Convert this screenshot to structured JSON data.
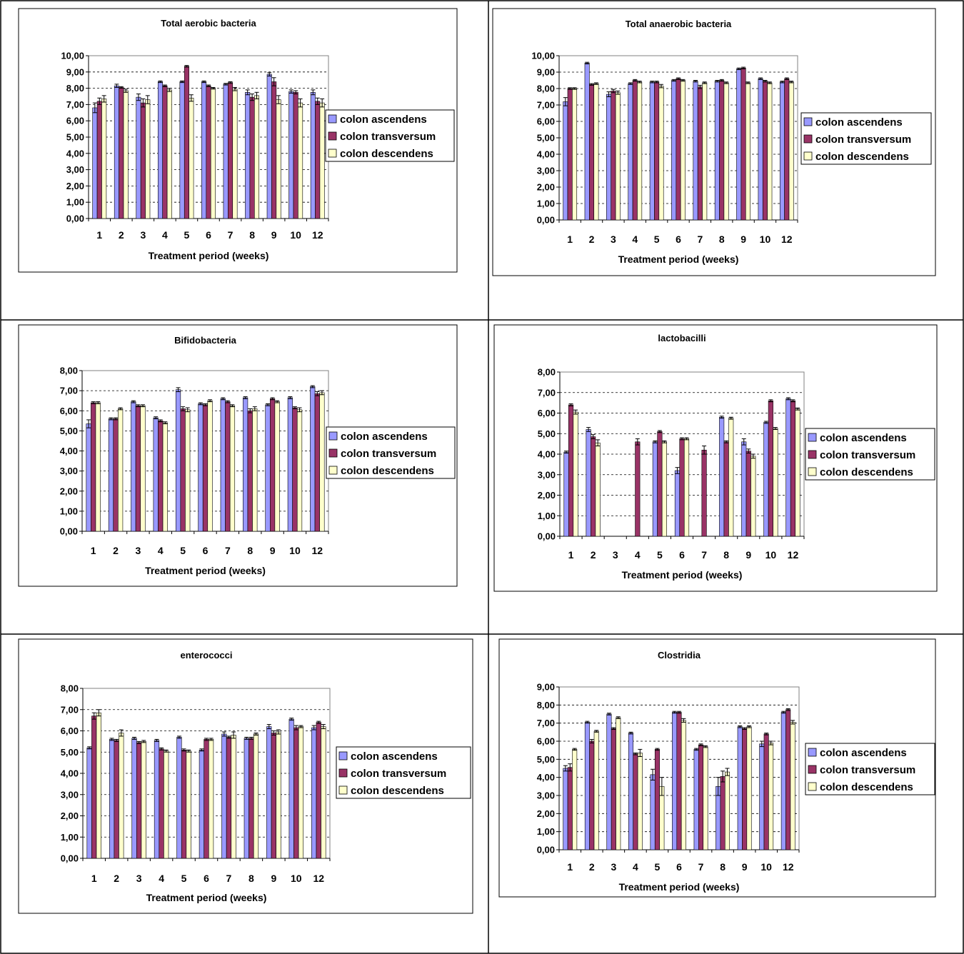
{
  "series_colors": [
    "#9999ff",
    "#993366",
    "#ffffcc"
  ],
  "series_names": [
    "colon ascendens",
    "colon transversum",
    "colon descendens"
  ],
  "chart_data": [
    {
      "type": "bar",
      "title": "Total aerobic bacteria",
      "xlabel": "Treatment period (weeks)",
      "ylabel": "",
      "categories": [
        "1",
        "2",
        "3",
        "4",
        "5",
        "6",
        "7",
        "8",
        "9",
        "10",
        "12"
      ],
      "ylim": [
        0,
        10
      ],
      "yticks": [
        "0,00",
        "1,00",
        "2,00",
        "3,00",
        "4,00",
        "5,00",
        "6,00",
        "7,00",
        "8,00",
        "9,00",
        "10,00"
      ],
      "grid": true,
      "legend": "right",
      "series": [
        {
          "name": "colon ascendens",
          "values": [
            6.8,
            8.15,
            7.45,
            8.4,
            8.4,
            8.4,
            8.25,
            7.75,
            8.85,
            7.8,
            7.75
          ],
          "errors": [
            0.3,
            0.1,
            0.2,
            0.05,
            0.05,
            0.05,
            0.05,
            0.15,
            0.1,
            0.1,
            0.15
          ]
        },
        {
          "name": "colon transversum",
          "values": [
            7.2,
            8.05,
            7.1,
            8.15,
            9.35,
            8.15,
            8.35,
            7.45,
            8.4,
            7.75,
            7.2
          ],
          "errors": [
            0.2,
            0.05,
            0.25,
            0.05,
            0.05,
            0.05,
            0.05,
            0.2,
            0.25,
            0.1,
            0.2
          ]
        },
        {
          "name": "colon descendens",
          "values": [
            7.35,
            7.85,
            7.3,
            7.9,
            7.4,
            8.0,
            7.95,
            7.55,
            7.3,
            7.1,
            7.1
          ],
          "errors": [
            0.2,
            0.1,
            0.25,
            0.1,
            0.2,
            0.05,
            0.1,
            0.2,
            0.25,
            0.25,
            0.25
          ]
        }
      ]
    },
    {
      "type": "bar",
      "title": "Total anaerobic bacteria",
      "xlabel": "Treatment period (weeks)",
      "ylabel": "",
      "categories": [
        "1",
        "2",
        "3",
        "4",
        "5",
        "6",
        "7",
        "8",
        "9",
        "10",
        "12"
      ],
      "ylim": [
        0,
        10
      ],
      "yticks": [
        "0,00",
        "1,00",
        "2,00",
        "3,00",
        "4,00",
        "5,00",
        "6,00",
        "7,00",
        "8,00",
        "9,00",
        "10,00"
      ],
      "grid": true,
      "legend": "right",
      "series": [
        {
          "name": "colon ascendens",
          "values": [
            7.2,
            9.55,
            7.65,
            8.3,
            8.4,
            8.5,
            8.45,
            8.45,
            9.2,
            8.6,
            8.4
          ],
          "errors": [
            0.25,
            0.05,
            0.15,
            0.05,
            0.05,
            0.05,
            0.05,
            0.05,
            0.05,
            0.05,
            0.05
          ]
        },
        {
          "name": "colon transversum",
          "values": [
            8.0,
            8.25,
            7.85,
            8.5,
            8.4,
            8.6,
            8.1,
            8.5,
            9.25,
            8.45,
            8.6
          ],
          "errors": [
            0.05,
            0.05,
            0.1,
            0.05,
            0.05,
            0.05,
            0.1,
            0.05,
            0.05,
            0.05,
            0.05
          ]
        },
        {
          "name": "colon descendens",
          "values": [
            8.0,
            8.3,
            7.75,
            8.4,
            8.15,
            8.5,
            8.35,
            8.35,
            8.35,
            8.35,
            8.4
          ],
          "errors": [
            0.05,
            0.05,
            0.1,
            0.05,
            0.1,
            0.05,
            0.05,
            0.05,
            0.05,
            0.05,
            0.05
          ]
        }
      ]
    },
    {
      "type": "bar",
      "title": "Bifidobacteria",
      "xlabel": "Treatment period (weeks)",
      "ylabel": "",
      "categories": [
        "1",
        "2",
        "3",
        "4",
        "5",
        "6",
        "7",
        "8",
        "9",
        "10",
        "12"
      ],
      "ylim": [
        0,
        8
      ],
      "yticks": [
        "0,00",
        "1,00",
        "2,00",
        "3,00",
        "4,00",
        "5,00",
        "6,00",
        "7,00",
        "8,00"
      ],
      "grid": true,
      "legend": "right",
      "series": [
        {
          "name": "colon ascendens",
          "values": [
            5.35,
            5.6,
            6.45,
            5.65,
            7.05,
            6.35,
            6.6,
            6.65,
            6.3,
            6.65,
            7.2
          ],
          "errors": [
            0.2,
            0.05,
            0.05,
            0.05,
            0.1,
            0.05,
            0.05,
            0.05,
            0.05,
            0.05,
            0.05
          ]
        },
        {
          "name": "colon transversum",
          "values": [
            6.4,
            5.6,
            6.25,
            5.5,
            6.1,
            6.3,
            6.45,
            6.0,
            6.6,
            6.15,
            6.85
          ],
          "errors": [
            0.05,
            0.05,
            0.05,
            0.05,
            0.1,
            0.05,
            0.05,
            0.1,
            0.05,
            0.05,
            0.1
          ]
        },
        {
          "name": "colon descendens",
          "values": [
            6.4,
            6.1,
            6.25,
            5.4,
            6.05,
            6.5,
            6.25,
            6.1,
            6.45,
            6.05,
            6.9
          ],
          "errors": [
            0.05,
            0.05,
            0.05,
            0.05,
            0.1,
            0.05,
            0.05,
            0.1,
            0.05,
            0.1,
            0.1
          ]
        }
      ]
    },
    {
      "type": "bar",
      "title": "lactobacilli",
      "xlabel": "Treatment period (weeks)",
      "ylabel": "",
      "categories": [
        "1",
        "2",
        "3",
        "4",
        "5",
        "6",
        "7",
        "8",
        "9",
        "10",
        "12"
      ],
      "ylim": [
        0,
        8
      ],
      "yticks": [
        "0,00",
        "1,00",
        "2,00",
        "3,00",
        "4,00",
        "5,00",
        "6,00",
        "7,00",
        "8,00"
      ],
      "grid": true,
      "legend": "right",
      "series": [
        {
          "name": "colon ascendens",
          "values": [
            4.1,
            5.2,
            0,
            0,
            4.6,
            3.2,
            0,
            5.8,
            4.6,
            5.55,
            6.7
          ],
          "errors": [
            0.05,
            0.1,
            0,
            0,
            0.05,
            0.15,
            0,
            0.05,
            0.15,
            0.05,
            0.05
          ]
        },
        {
          "name": "colon transversum",
          "values": [
            6.4,
            4.85,
            0,
            4.6,
            5.1,
            4.75,
            4.2,
            4.6,
            4.15,
            6.6,
            6.6
          ],
          "errors": [
            0.05,
            0.1,
            0,
            0.15,
            0.05,
            0.05,
            0.2,
            0.05,
            0.1,
            0.05,
            0.05
          ]
        },
        {
          "name": "colon descendens",
          "values": [
            6.05,
            4.55,
            0,
            0,
            4.6,
            4.75,
            0,
            5.75,
            3.9,
            5.25,
            6.2
          ],
          "errors": [
            0.1,
            0.15,
            0,
            0,
            0.05,
            0.05,
            0,
            0.05,
            0.1,
            0.05,
            0.05
          ]
        }
      ]
    },
    {
      "type": "bar",
      "title": "enterococci",
      "xlabel": "Treatment period (weeks)",
      "ylabel": "",
      "categories": [
        "1",
        "2",
        "3",
        "4",
        "5",
        "6",
        "7",
        "8",
        "9",
        "10",
        "12"
      ],
      "ylim": [
        0,
        8
      ],
      "yticks": [
        "0,00",
        "1,00",
        "2,00",
        "3,00",
        "4,00",
        "5,00",
        "6,00",
        "7,00",
        "8,00"
      ],
      "grid": true,
      "legend": "right",
      "series": [
        {
          "name": "colon ascendens",
          "values": [
            5.2,
            5.6,
            5.65,
            5.55,
            5.7,
            5.1,
            5.85,
            5.65,
            6.2,
            6.55,
            6.15
          ],
          "errors": [
            0.05,
            0.05,
            0.05,
            0.05,
            0.05,
            0.05,
            0.1,
            0.05,
            0.1,
            0.05,
            0.1
          ]
        },
        {
          "name": "colon transversum",
          "values": [
            6.7,
            5.55,
            5.45,
            5.15,
            5.1,
            5.6,
            5.7,
            5.65,
            5.9,
            6.15,
            6.4
          ],
          "errors": [
            0.15,
            0.05,
            0.05,
            0.05,
            0.05,
            0.05,
            0.05,
            0.05,
            0.1,
            0.1,
            0.05
          ]
        },
        {
          "name": "colon descendens",
          "values": [
            6.85,
            5.9,
            5.5,
            5.05,
            5.05,
            5.6,
            5.8,
            5.85,
            5.95,
            6.2,
            6.2
          ],
          "errors": [
            0.15,
            0.15,
            0.05,
            0.05,
            0.05,
            0.05,
            0.15,
            0.05,
            0.1,
            0.05,
            0.1
          ]
        }
      ]
    },
    {
      "type": "bar",
      "title": "Clostridia",
      "xlabel": "Treatment period (weeks)",
      "ylabel": "",
      "categories": [
        "1",
        "2",
        "3",
        "4",
        "5",
        "6",
        "7",
        "8",
        "9",
        "10",
        "12"
      ],
      "ylim": [
        0,
        9
      ],
      "yticks": [
        "0,00",
        "1,00",
        "2,00",
        "3,00",
        "4,00",
        "5,00",
        "6,00",
        "7,00",
        "8,00",
        "9,00"
      ],
      "grid": true,
      "legend": "right",
      "series": [
        {
          "name": "colon ascendens",
          "values": [
            4.5,
            7.05,
            7.5,
            6.45,
            4.15,
            7.6,
            5.55,
            3.5,
            6.8,
            5.85,
            7.6
          ],
          "errors": [
            0.15,
            0.05,
            0.05,
            0.05,
            0.3,
            0.05,
            0.05,
            0.5,
            0.05,
            0.15,
            0.05
          ]
        },
        {
          "name": "colon transversum",
          "values": [
            4.55,
            6.0,
            6.7,
            5.3,
            5.55,
            7.6,
            5.8,
            4.05,
            6.7,
            6.4,
            7.75
          ],
          "errors": [
            0.2,
            0.1,
            0.05,
            0.05,
            0.05,
            0.05,
            0.05,
            0.3,
            0.05,
            0.05,
            0.05
          ]
        },
        {
          "name": "colon descendens",
          "values": [
            5.55,
            6.55,
            7.3,
            5.35,
            3.5,
            7.15,
            5.7,
            4.3,
            6.8,
            5.9,
            7.05
          ],
          "errors": [
            0.05,
            0.05,
            0.05,
            0.2,
            0.5,
            0.1,
            0.05,
            0.2,
            0.05,
            0.1,
            0.1
          ]
        }
      ]
    }
  ]
}
